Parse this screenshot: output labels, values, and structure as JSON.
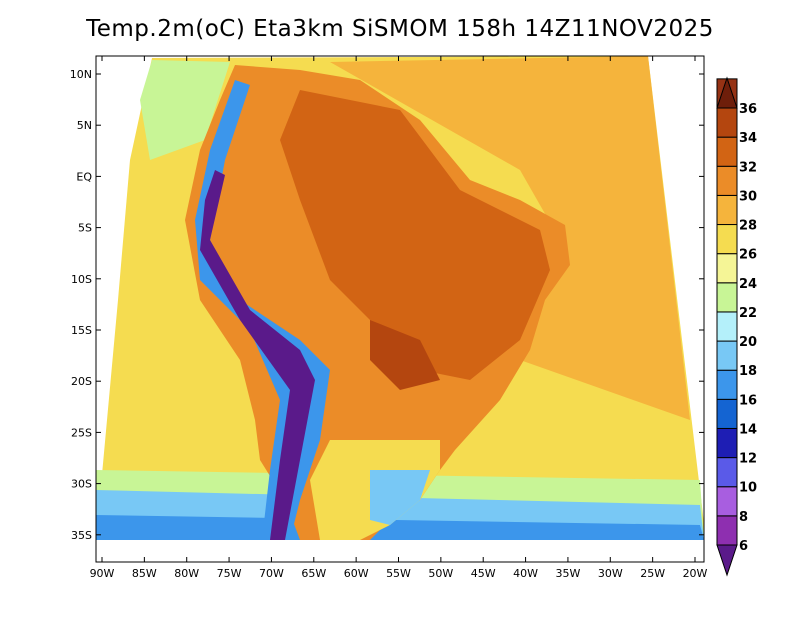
{
  "title": "Temp.2m(oC) Eta3km SiSMOM 158h 14Z11NOV2025",
  "map": {
    "lat_labels": [
      "10N",
      "5N",
      "EQ",
      "5S",
      "10S",
      "15S",
      "20S",
      "25S",
      "30S",
      "35S"
    ],
    "lon_labels": [
      "90W",
      "85W",
      "80W",
      "75W",
      "70W",
      "65W",
      "60W",
      "55W",
      "50W",
      "45W",
      "40W",
      "35W",
      "30W",
      "25W",
      "20W"
    ],
    "lat_range": [
      12,
      -38
    ],
    "lon_range": [
      -90,
      -20
    ]
  },
  "colorbar": {
    "labels": [
      "6",
      "8",
      "10",
      "12",
      "14",
      "16",
      "18",
      "20",
      "22",
      "24",
      "26",
      "28",
      "30",
      "32",
      "34",
      "36"
    ],
    "colors": [
      "#5a1a8a",
      "#8e2fb0",
      "#a85ee0",
      "#5a5ae8",
      "#1e1eb4",
      "#1464d2",
      "#3c96eb",
      "#78c8f5",
      "#b4f0fa",
      "#c8f596",
      "#f5f596",
      "#f5dc50",
      "#f5b43c",
      "#eb8c28",
      "#d26414",
      "#b4460f",
      "#963214",
      "#6e1e0a"
    ]
  },
  "colors": {
    "ocean_warm": "#f5b43c",
    "ocean_mid": "#f5dc50",
    "land_hot": "#eb8c28",
    "andes": "#5a1a8a"
  }
}
